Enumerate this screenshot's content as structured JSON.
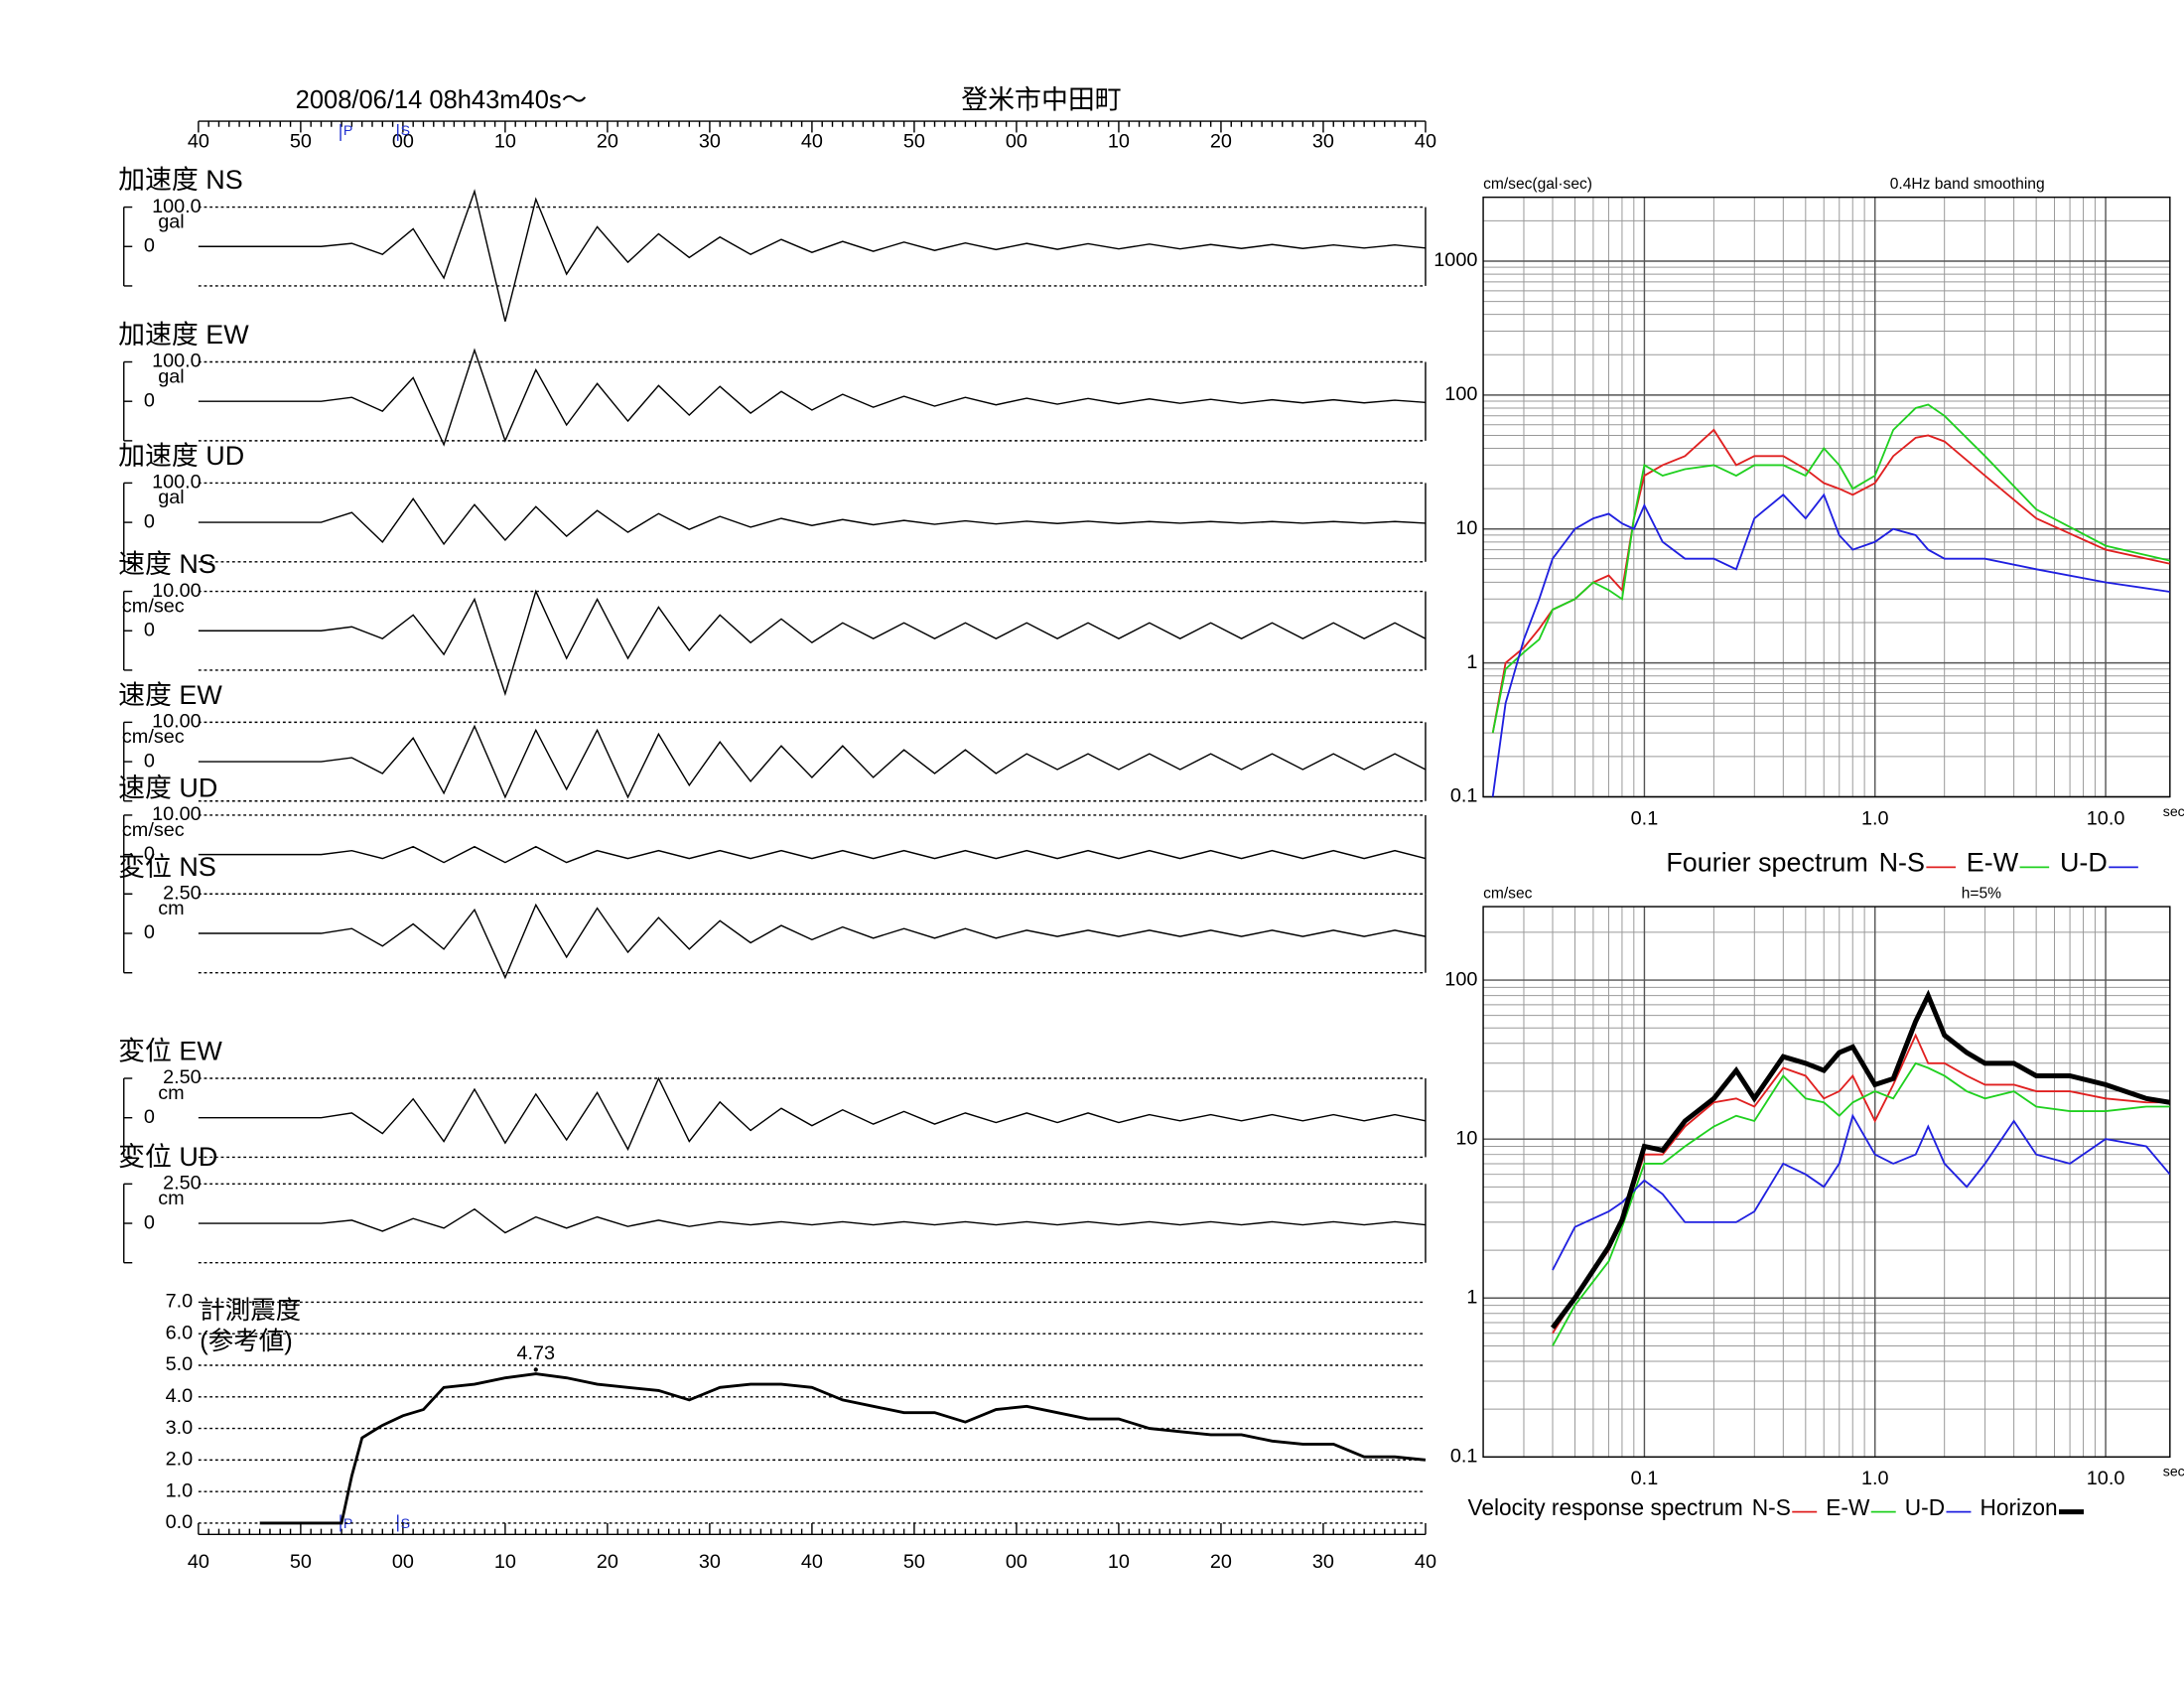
{
  "chart_data": [
    {
      "type": "waveform",
      "title": "登米市中田町",
      "subtitle": "2008/06/14  08h43m40s～",
      "x": [
        0,
        3,
        6,
        9,
        12,
        15,
        18,
        21,
        24,
        27,
        30,
        33,
        36,
        39,
        42,
        45,
        48,
        51,
        54,
        57,
        60,
        63,
        66,
        69,
        72,
        75,
        78,
        81,
        84,
        87,
        90,
        93,
        96,
        99,
        102,
        105,
        108,
        111,
        114,
        117,
        120
      ],
      "xlim": [
        0,
        120
      ],
      "xticks": [
        {
          "value": 0,
          "label": "40"
        },
        {
          "value": 10,
          "label": "50"
        },
        {
          "value": 20,
          "label": "00"
        },
        {
          "value": 30,
          "label": "10"
        },
        {
          "value": 40,
          "label": "20"
        },
        {
          "value": 50,
          "label": "30"
        },
        {
          "value": 60,
          "label": "40"
        },
        {
          "value": 70,
          "label": "50"
        },
        {
          "value": 80,
          "label": "00"
        },
        {
          "value": 90,
          "label": "10"
        },
        {
          "value": 100,
          "label": "20"
        },
        {
          "value": 110,
          "label": "30"
        },
        {
          "value": 120,
          "label": "40"
        }
      ],
      "phase_markers": [
        {
          "label": "P",
          "value": 13.9
        },
        {
          "label": "S",
          "value": 19.5
        }
      ],
      "panels": [
        {
          "title": "加速度 NS",
          "unit": "gal",
          "ylim": [
            -100,
            100
          ],
          "yticks": [
            {
              "value": 100,
              "label": "100.0"
            },
            0
          ],
          "values": [
            0,
            0,
            0,
            0,
            0,
            8,
            -20,
            45,
            -80,
            140,
            -190,
            120,
            -70,
            50,
            -40,
            32,
            -28,
            24,
            -20,
            18,
            -15,
            13,
            -12,
            11,
            -10,
            9,
            -8,
            8,
            -7,
            7,
            -6,
            6,
            -6,
            5,
            -5,
            5,
            -5,
            4,
            -4,
            4,
            -4
          ]
        },
        {
          "title": "加速度 EW",
          "unit": "gal",
          "ylim": [
            -100,
            100
          ],
          "yticks": [
            {
              "value": 100,
              "label": "100.0"
            },
            0
          ],
          "values": [
            0,
            0,
            0,
            0,
            0,
            10,
            -25,
            60,
            -110,
            130,
            -100,
            80,
            -60,
            45,
            -50,
            40,
            -35,
            38,
            -30,
            25,
            -22,
            18,
            -15,
            13,
            -12,
            10,
            -9,
            8,
            -7,
            7,
            -6,
            6,
            -5,
            5,
            -5,
            4,
            -4,
            4,
            -4,
            3,
            -3
          ]
        },
        {
          "title": "加速度 UD",
          "unit": "gal",
          "ylim": [
            -100,
            100
          ],
          "yticks": [
            {
              "value": 100,
              "label": "100.0"
            },
            0
          ],
          "values": [
            0,
            0,
            0,
            0,
            0,
            25,
            -50,
            60,
            -55,
            45,
            -45,
            40,
            -35,
            30,
            -25,
            22,
            -18,
            15,
            -12,
            10,
            -8,
            7,
            -6,
            5,
            -5,
            4,
            -4,
            3,
            -3,
            3,
            -3,
            2,
            -2,
            2,
            -2,
            2,
            -2,
            2,
            -2,
            2,
            -2
          ]
        },
        {
          "title": "速度 NS",
          "unit": "cm/sec",
          "ylim": [
            -10,
            10
          ],
          "yticks": [
            {
              "value": 10,
              "label": "10.00"
            },
            0
          ],
          "values": [
            0,
            0,
            0,
            0,
            0,
            1,
            -2,
            4,
            -6,
            8,
            -16,
            10,
            -7,
            8,
            -7,
            6,
            -5,
            4,
            -3,
            3,
            -3,
            2,
            -2,
            2,
            -2,
            2,
            -2,
            2,
            -2,
            2,
            -2,
            2,
            -2,
            2,
            -2,
            2,
            -2,
            2,
            -2,
            2,
            -2
          ]
        },
        {
          "title": "速度 EW",
          "unit": "cm/sec",
          "ylim": [
            -10,
            10
          ],
          "yticks": [
            {
              "value": 10,
              "label": "10.00"
            },
            0
          ],
          "values": [
            0,
            0,
            0,
            0,
            0,
            1,
            -3,
            6,
            -8,
            9,
            -9,
            8,
            -7,
            8,
            -9,
            7,
            -6,
            5,
            -5,
            4,
            -4,
            4,
            -4,
            3,
            -3,
            3,
            -3,
            2,
            -2,
            2,
            -2,
            2,
            -2,
            2,
            -2,
            2,
            -2,
            2,
            -2,
            2,
            -2
          ]
        },
        {
          "title": "速度 UD",
          "unit": "cm/sec",
          "ylim": [
            -10,
            10
          ],
          "yticks": [
            {
              "value": 10,
              "label": "10.00"
            },
            0
          ],
          "values": [
            0,
            0,
            0,
            0,
            0,
            1,
            -1,
            2,
            -2,
            2,
            -2,
            2,
            -2,
            1,
            -1,
            1,
            -1,
            1,
            -1,
            1,
            -1,
            1,
            -1,
            1,
            -1,
            1,
            -1,
            1,
            -1,
            1,
            -1,
            1,
            -1,
            1,
            -1,
            1,
            -1,
            1,
            -1,
            1,
            -1
          ]
        },
        {
          "title": "変位 NS",
          "unit": "cm",
          "ylim": [
            -2.5,
            2.5
          ],
          "yticks": [
            {
              "value": 2.5,
              "label": "2.50"
            },
            0
          ],
          "values": [
            0,
            0,
            0,
            0,
            0,
            0.3,
            -0.8,
            0.6,
            -1.0,
            1.5,
            -2.8,
            1.8,
            -1.5,
            1.6,
            -1.2,
            1.0,
            -1.0,
            0.8,
            -0.6,
            0.5,
            -0.4,
            0.4,
            -0.3,
            0.3,
            -0.3,
            0.3,
            -0.3,
            0.2,
            -0.2,
            0.2,
            -0.2,
            0.2,
            -0.2,
            0.2,
            -0.2,
            0.2,
            -0.2,
            0.2,
            -0.2,
            0.2,
            -0.2
          ]
        },
        {
          "title": "変位 EW",
          "unit": "cm",
          "ylim": [
            -2.5,
            2.5
          ],
          "yticks": [
            {
              "value": 2.5,
              "label": "2.50"
            },
            0
          ],
          "values": [
            0,
            0,
            0,
            0,
            0,
            0.3,
            -1.0,
            1.2,
            -1.5,
            1.8,
            -1.6,
            1.5,
            -1.4,
            1.6,
            -2.0,
            2.5,
            -1.5,
            1.0,
            -0.8,
            0.6,
            -0.5,
            0.5,
            -0.4,
            0.4,
            -0.4,
            0.3,
            -0.3,
            0.3,
            -0.3,
            0.3,
            -0.3,
            0.2,
            -0.2,
            0.2,
            -0.2,
            0.2,
            -0.2,
            0.2,
            -0.2,
            0.2,
            -0.2
          ]
        },
        {
          "title": "変位 UD",
          "unit": "cm",
          "ylim": [
            -2.5,
            2.5
          ],
          "yticks": [
            {
              "value": 2.5,
              "label": "2.50"
            },
            0
          ],
          "values": [
            0,
            0,
            0,
            0,
            0,
            0.2,
            -0.5,
            0.3,
            -0.3,
            0.9,
            -0.6,
            0.4,
            -0.3,
            0.4,
            -0.2,
            0.2,
            -0.2,
            0.1,
            -0.1,
            0.1,
            -0.1,
            0.1,
            -0.1,
            0.1,
            -0.1,
            0.1,
            -0.1,
            0.1,
            -0.1,
            0.1,
            -0.1,
            0.1,
            -0.1,
            0.1,
            -0.1,
            0.1,
            -0.1,
            0.1,
            -0.1,
            0.1,
            -0.1
          ]
        }
      ]
    },
    {
      "type": "intensity",
      "title": "計測震度",
      "subtitle": "(参考値)",
      "color": "#000000",
      "grid": true,
      "x": [
        6,
        14,
        15,
        16,
        18,
        20,
        22,
        24,
        27,
        30,
        33,
        36,
        39,
        42,
        45,
        48,
        51,
        54,
        57,
        60,
        63,
        66,
        69,
        72,
        75,
        78,
        81,
        84,
        87,
        90,
        93,
        96,
        99,
        102,
        105,
        108,
        111,
        114,
        117,
        120
      ],
      "values": [
        0,
        0,
        1.5,
        2.7,
        3.1,
        3.4,
        3.6,
        4.3,
        4.4,
        4.6,
        4.73,
        4.6,
        4.4,
        4.3,
        4.2,
        3.9,
        4.3,
        4.4,
        4.4,
        4.3,
        3.9,
        3.7,
        3.5,
        3.5,
        3.2,
        3.6,
        3.7,
        3.5,
        3.3,
        3.3,
        3.0,
        2.9,
        2.8,
        2.8,
        2.6,
        2.5,
        2.5,
        2.1,
        2.1,
        2.0
      ],
      "xlim": [
        0,
        120
      ],
      "xticks": [
        {
          "value": 0,
          "label": "40"
        },
        {
          "value": 10,
          "label": "50"
        },
        {
          "value": 20,
          "label": "00"
        },
        {
          "value": 30,
          "label": "10"
        },
        {
          "value": 40,
          "label": "20"
        },
        {
          "value": 50,
          "label": "30"
        },
        {
          "value": 60,
          "label": "40"
        },
        {
          "value": 70,
          "label": "50"
        },
        {
          "value": 80,
          "label": "00"
        },
        {
          "value": 90,
          "label": "10"
        },
        {
          "value": 100,
          "label": "20"
        },
        {
          "value": 110,
          "label": "30"
        },
        {
          "value": 120,
          "label": "40"
        }
      ],
      "phase_markers": [
        {
          "label": "P",
          "value": 13.9
        },
        {
          "label": "S",
          "value": 19.5
        }
      ],
      "ylim": [
        0,
        7
      ],
      "yticks": [
        {
          "value": 0,
          "label": "0.0"
        },
        {
          "value": 1,
          "label": "1.0"
        },
        {
          "value": 2,
          "label": "2.0"
        },
        {
          "value": 3,
          "label": "3.0"
        },
        {
          "value": 4,
          "label": "4.0"
        },
        {
          "value": 5,
          "label": "5.0"
        },
        {
          "value": 6,
          "label": "6.0"
        },
        {
          "value": 7,
          "label": "7.0"
        }
      ]
    },
    {
      "type": "line",
      "title": "Fourier spectrum",
      "ylabel": "cm/sec(gal·sec)",
      "note": "0.4Hz band smoothing",
      "xlabel": "sec",
      "log_x": true,
      "log_y": true,
      "grid": true,
      "x": [
        0.022,
        0.025,
        0.03,
        0.035,
        0.04,
        0.05,
        0.06,
        0.07,
        0.08,
        0.09,
        0.1,
        0.12,
        0.15,
        0.2,
        0.25,
        0.3,
        0.4,
        0.5,
        0.6,
        0.7,
        0.8,
        1.0,
        1.2,
        1.5,
        1.7,
        2,
        3,
        5,
        10,
        19
      ],
      "series": [
        {
          "name": "N-S",
          "color": "#e02020",
          "values": [
            0.3,
            1.0,
            1.3,
            1.8,
            2.5,
            3,
            4,
            4.5,
            3.5,
            12,
            25,
            30,
            35,
            55,
            30,
            35,
            35,
            28,
            22,
            20,
            18,
            22,
            35,
            48,
            50,
            45,
            25,
            12,
            7,
            5.5
          ]
        },
        {
          "name": "E-W",
          "color": "#20d020",
          "values": [
            0.3,
            0.9,
            1.2,
            1.5,
            2.5,
            3,
            4,
            3.5,
            3,
            12,
            30,
            25,
            28,
            30,
            25,
            30,
            30,
            25,
            40,
            30,
            20,
            25,
            55,
            80,
            85,
            70,
            35,
            14,
            7.5,
            5.8
          ]
        },
        {
          "name": "U-D",
          "color": "#2020e0",
          "values": [
            0.1,
            0.5,
            1.5,
            3,
            6,
            10,
            12,
            13,
            11,
            10,
            15,
            8,
            6,
            6,
            5,
            12,
            18,
            12,
            18,
            9,
            7,
            8,
            10,
            9,
            7,
            6,
            6,
            5,
            4,
            3.4
          ]
        }
      ],
      "xlim": [
        0.02,
        19
      ],
      "ylim": [
        0.1,
        3000
      ],
      "xticks": [
        0.1,
        {
          "value": 1,
          "label": "1.0"
        },
        {
          "value": 10,
          "label": "10.0"
        }
      ],
      "yticks": [
        0.1,
        1,
        10,
        100,
        1000
      ]
    },
    {
      "type": "line",
      "title": "Velocity response spectrum",
      "ylabel": "cm/sec",
      "note": "h=5%",
      "xlabel": "sec",
      "log_x": true,
      "log_y": true,
      "grid": true,
      "x": [
        0.04,
        0.05,
        0.07,
        0.08,
        0.1,
        0.12,
        0.15,
        0.2,
        0.25,
        0.3,
        0.4,
        0.5,
        0.6,
        0.7,
        0.8,
        1.0,
        1.2,
        1.5,
        1.7,
        2,
        2.5,
        3,
        4,
        5,
        7,
        10,
        15,
        19
      ],
      "series": [
        {
          "name": "N-S",
          "color": "#e02020",
          "values": [
            0.6,
            1.0,
            2.0,
            3.0,
            8,
            8,
            12,
            17,
            18,
            16,
            28,
            25,
            18,
            20,
            25,
            13,
            22,
            45,
            30,
            30,
            25,
            22,
            22,
            20,
            20,
            18,
            17,
            17
          ]
        },
        {
          "name": "E-W",
          "color": "#20d020",
          "values": [
            0.5,
            0.9,
            1.7,
            2.8,
            7,
            7,
            9,
            12,
            14,
            13,
            25,
            18,
            17,
            14,
            17,
            20,
            18,
            30,
            28,
            25,
            20,
            18,
            20,
            16,
            15,
            15,
            16,
            16
          ]
        },
        {
          "name": "U-D",
          "color": "#2020e0",
          "values": [
            1.5,
            2.8,
            3.5,
            4,
            5.5,
            4.5,
            3,
            3,
            3,
            3.5,
            7,
            6,
            5,
            7,
            14,
            8,
            7,
            8,
            12,
            7,
            5,
            7,
            13,
            8,
            7,
            10,
            9,
            6
          ]
        },
        {
          "name": "Horizon",
          "color": "#000000",
          "values": [
            0.65,
            1.0,
            2.1,
            3.1,
            9,
            8.5,
            13,
            18,
            27,
            18,
            33,
            30,
            27,
            35,
            38,
            22,
            24,
            55,
            80,
            45,
            35,
            30,
            30,
            25,
            25,
            22,
            18,
            17
          ]
        }
      ],
      "xlim": [
        0.02,
        19
      ],
      "ylim": [
        0.1,
        290
      ],
      "xticks": [
        0.1,
        {
          "value": 1,
          "label": "1.0"
        },
        {
          "value": 10,
          "label": "10.0"
        }
      ],
      "yticks": [
        0.1,
        1,
        10,
        100
      ]
    }
  ]
}
